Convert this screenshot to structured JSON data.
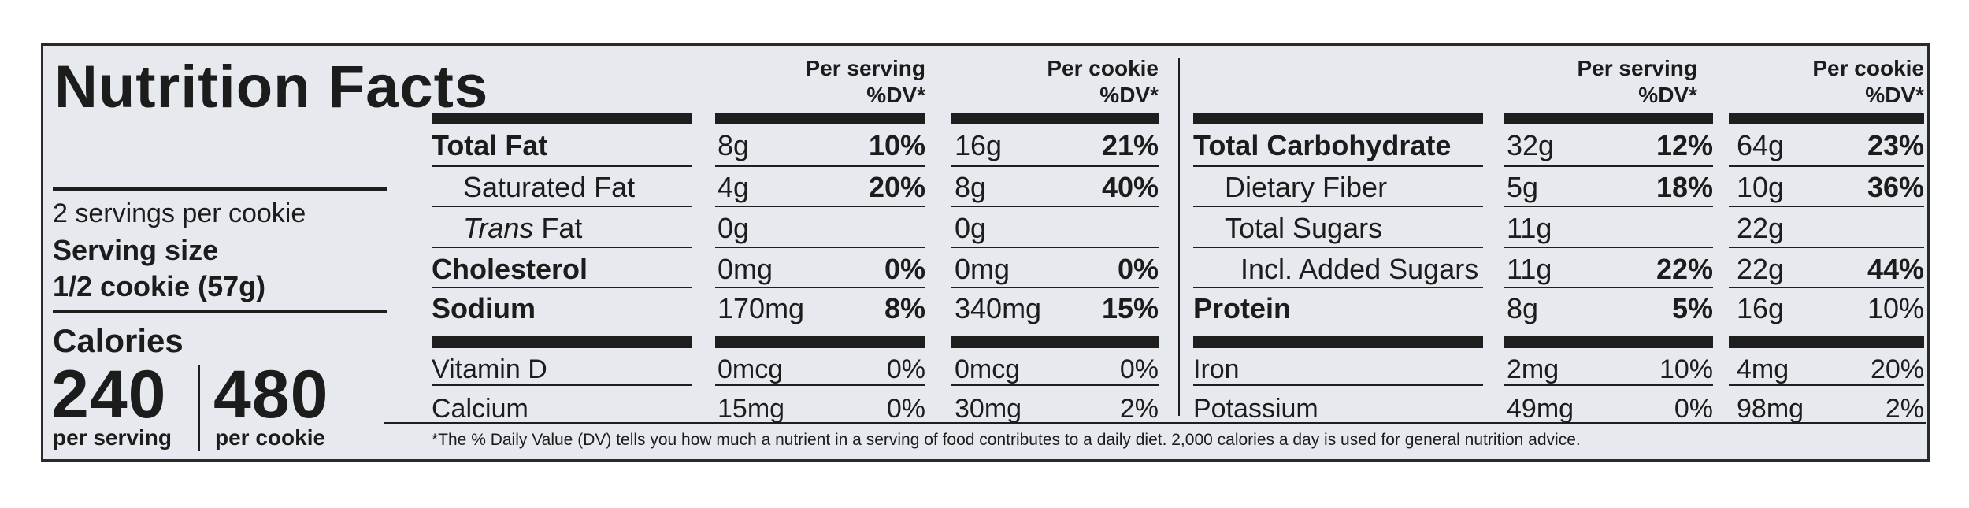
{
  "title": "Nutrition Facts",
  "servings_per_container": "2 servings per cookie",
  "serving_size_label": "Serving size",
  "serving_size_value": "1/2 cookie (57g)",
  "calories_label": "Calories",
  "calories_serving": "240",
  "calories_serving_label": "per serving",
  "calories_cookie": "480",
  "calories_cookie_label": "per cookie",
  "headers": {
    "per_serving": "Per serving",
    "per_cookie": "Per cookie",
    "dv": "%DV*"
  },
  "left_rows": [
    {
      "name": "Total Fat",
      "s_amt": "8g",
      "s_dv": "10%",
      "c_amt": "16g",
      "c_dv": "21%"
    },
    {
      "name": "Saturated Fat",
      "s_amt": "4g",
      "s_dv": "20%",
      "c_amt": "8g",
      "c_dv": "40%"
    },
    {
      "name_italic": "Trans",
      "name_rest": " Fat",
      "s_amt": "0g",
      "c_amt": "0g"
    },
    {
      "name": "Cholesterol",
      "s_amt": "0mg",
      "s_dv": "0%",
      "c_amt": "0mg",
      "c_dv": "0%"
    },
    {
      "name": "Sodium",
      "s_amt": "170mg",
      "s_dv": "8%",
      "c_amt": "340mg",
      "c_dv": "15%"
    },
    {
      "name": "Vitamin D",
      "s_amt": "0mcg",
      "s_dv": "0%",
      "c_amt": "0mcg",
      "c_dv": "0%"
    },
    {
      "name": "Calcium",
      "s_amt": "15mg",
      "s_dv": "0%",
      "c_amt": "30mg",
      "c_dv": "2%"
    }
  ],
  "right_rows": [
    {
      "name": "Total Carbohydrate",
      "s_amt": "32g",
      "s_dv": "12%",
      "c_amt": "64g",
      "c_dv": "23%"
    },
    {
      "name": "Dietary Fiber",
      "s_amt": "5g",
      "s_dv": "18%",
      "c_amt": "10g",
      "c_dv": "36%"
    },
    {
      "name": "Total Sugars",
      "s_amt": "11g",
      "c_amt": "22g"
    },
    {
      "name": "Incl. Added Sugars",
      "s_amt": "11g",
      "s_dv": "22%",
      "c_amt": "22g",
      "c_dv": "44%"
    },
    {
      "name": "Protein",
      "s_amt": "8g",
      "s_dv": "5%",
      "c_amt": "16g",
      "c_dv": "10%"
    },
    {
      "name": "Iron",
      "s_amt": "2mg",
      "s_dv": "10%",
      "c_amt": "4mg",
      "c_dv": "20%"
    },
    {
      "name": "Potassium",
      "s_amt": "49mg",
      "s_dv": "0%",
      "c_amt": "98mg",
      "c_dv": "2%"
    }
  ],
  "footnote": "*The % Daily Value (DV) tells you how much a nutrient in a serving of food contributes to a daily diet. 2,000 calories a day is used for general nutrition advice."
}
